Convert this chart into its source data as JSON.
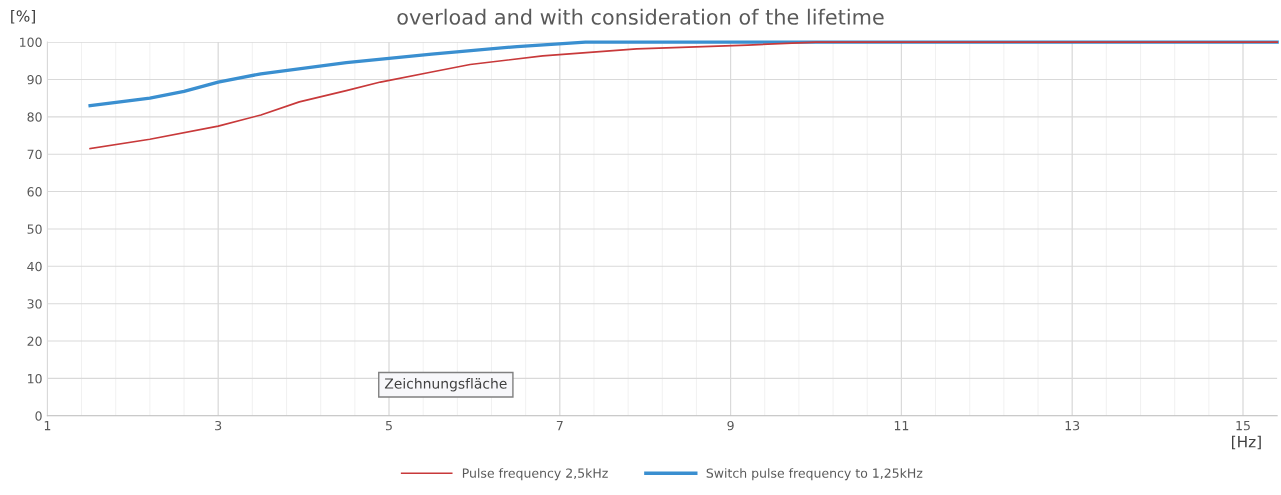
{
  "chart_data": {
    "type": "line",
    "title": "overload and with consideration of the lifetime",
    "xlabel": "[Hz]",
    "ylabel": "[%]",
    "annotations": [
      "Zeichnungsfläche"
    ],
    "series": [
      {
        "name": "Pulse frequency 2,5kHz",
        "color": "#c8393a",
        "x": [
          1.5,
          2.2,
          3.0,
          3.5,
          3.95,
          4.5,
          4.9,
          5.5,
          5.95,
          6.8,
          7.9,
          9.2,
          10.0,
          12,
          14,
          15.4
        ],
        "values": [
          71.5,
          74,
          77.5,
          80.5,
          84,
          87,
          89.3,
          92,
          94,
          96.3,
          98.2,
          99.2,
          100,
          100,
          100,
          100
        ]
      },
      {
        "name": "Switch pulse frequency to 1,25kHz",
        "color": "#3a8fd0",
        "x": [
          1.5,
          2.2,
          2.6,
          3.0,
          3.5,
          4.5,
          5.5,
          6.5,
          7.3,
          9,
          11,
          13,
          15.4
        ],
        "values": [
          83,
          85,
          86.8,
          89.3,
          91.5,
          94.5,
          96.8,
          98.8,
          100,
          100,
          100,
          100,
          100
        ]
      }
    ],
    "xlim": [
      1,
      15.4
    ],
    "xticks": [
      1,
      3,
      5,
      7,
      9,
      11,
      13,
      15
    ],
    "ylim": [
      0,
      100
    ],
    "yticks": [
      0,
      10,
      20,
      30,
      40,
      50,
      60,
      70,
      80,
      90,
      100
    ],
    "grid": true,
    "legend": "bottom",
    "marker": "none",
    "line_style": "solid"
  }
}
